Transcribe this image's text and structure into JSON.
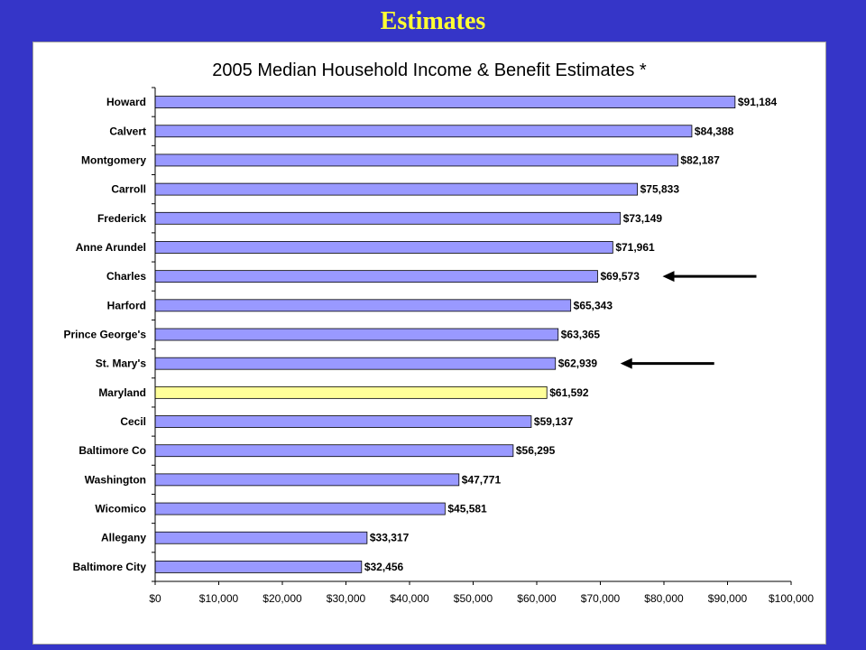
{
  "slide": {
    "title": "Estimates",
    "background_color": "#3535c8",
    "title_color": "#ffff33"
  },
  "chart_data": {
    "type": "bar",
    "orientation": "horizontal",
    "title": "2005 Median Household Income & Benefit Estimates *",
    "categories": [
      "Howard",
      "Calvert",
      "Montgomery",
      "Carroll",
      "Frederick",
      "Anne Arundel",
      "Charles",
      "Harford",
      "Prince George's",
      "St. Mary's",
      "Maryland",
      "Cecil",
      "Baltimore Co",
      "Washington",
      "Wicomico",
      "Allegany",
      "Baltimore City"
    ],
    "values": [
      91184,
      84388,
      82187,
      75833,
      73149,
      71961,
      69573,
      65343,
      63365,
      62939,
      61592,
      59137,
      56295,
      47771,
      45581,
      33317,
      32456
    ],
    "value_labels": [
      "$91,184",
      "$84,388",
      "$82,187",
      "$75,833",
      "$73,149",
      "$71,961",
      "$69,573",
      "$65,343",
      "$63,365",
      "$62,939",
      "$61,592",
      "$59,137",
      "$56,295",
      "$47,771",
      "$45,581",
      "$33,317",
      "$32,456"
    ],
    "xlim": [
      0,
      100000
    ],
    "x_ticks": [
      0,
      10000,
      20000,
      30000,
      40000,
      50000,
      60000,
      70000,
      80000,
      90000,
      100000
    ],
    "x_tick_labels": [
      "$0",
      "$10,000",
      "$20,000",
      "$30,000",
      "$40,000",
      "$50,000",
      "$60,000",
      "$70,000",
      "$80,000",
      "$90,000",
      "$100,000"
    ],
    "xlabel": "",
    "ylabel": "",
    "grid": false,
    "legend": "none",
    "bar_color": "#9999ff",
    "highlight_category": "Maryland",
    "highlight_color": "#ffff99",
    "annotations": [
      {
        "type": "arrow",
        "points_to": "Charles"
      },
      {
        "type": "arrow",
        "points_to": "St. Mary's"
      }
    ]
  }
}
